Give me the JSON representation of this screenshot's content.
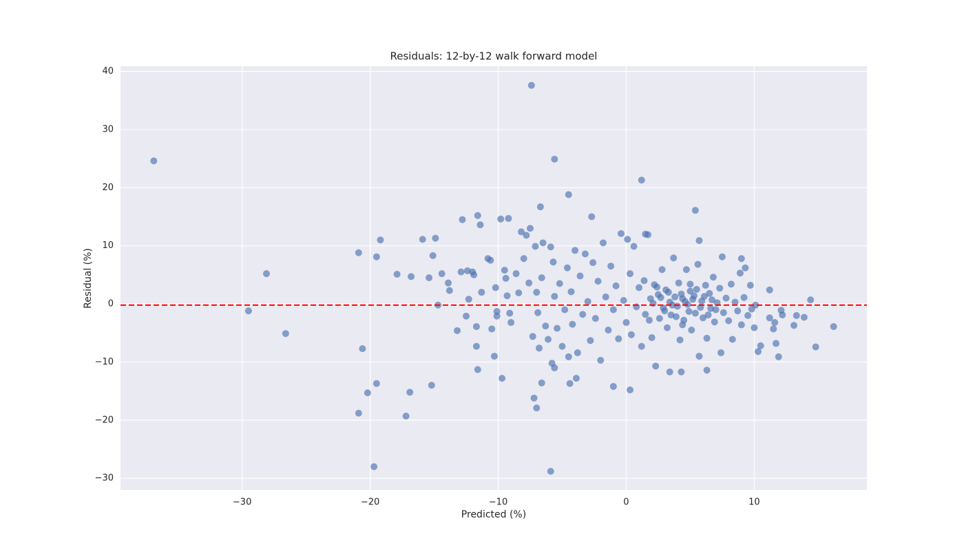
{
  "chart_data": {
    "type": "scatter",
    "title": "Residuals: 12-by-12 walk forward model",
    "x_label": "Predicted (%)",
    "y_label": "Residual (%)",
    "xlim": [
      -39.5,
      18.8
    ],
    "ylim": [
      -32.0,
      40.9
    ],
    "xticks": [
      {
        "value": -30,
        "label": "−30"
      },
      {
        "value": -20,
        "label": "−20"
      },
      {
        "value": -10,
        "label": "−10"
      },
      0,
      10
    ],
    "yticks": [
      {
        "value": -30,
        "label": "−30"
      },
      {
        "value": -20,
        "label": "−20"
      },
      {
        "value": -10,
        "label": "−10"
      },
      0,
      10,
      20,
      30,
      40
    ],
    "grid": true,
    "hline": -0.2,
    "hline_color": "#ff0000",
    "series": [
      {
        "color": "#4c72b0",
        "x": [
          -36.9,
          -29.5,
          -28.1,
          -26.6,
          -20.9,
          -20.6,
          -20.9,
          -20.2,
          -19.7,
          -19.5,
          -19.5,
          -19.2,
          -17.9,
          -17.2,
          -16.9,
          -16.8,
          -15.9,
          -15.4,
          -15.2,
          -15.1,
          -14.9,
          -14.7,
          -14.4,
          -13.9,
          -13.8,
          -13.2,
          -12.8,
          -12.9,
          -12.5,
          -12.4,
          -12.3,
          -12.0,
          -11.9,
          -11.7,
          -11.7,
          -11.6,
          -11.4,
          -11.6,
          -11.3,
          -10.8,
          -10.6,
          -10.5,
          -10.3,
          -10.2,
          -10.1,
          -10.1,
          -9.8,
          -9.7,
          -9.2,
          -7.4,
          -5.6,
          -4.5,
          1.2,
          5.4,
          -6.7,
          -2.7,
          5.7,
          1.5,
          -5.9,
          -7.0,
          -7.2,
          -6.6,
          -5.6,
          -5.8,
          -4.4,
          -3.9,
          -1.0,
          0.3,
          3.4,
          4.3,
          6.3,
          10.3,
          10.5,
          11.9,
          11.7,
          11.2,
          13.3,
          13.9,
          14.4,
          14.8,
          16.2,
          13.1,
          12.1,
          12.2,
          11.5,
          11.6,
          11.2,
          9.0,
          7.5,
          -9.5,
          -9.4,
          -9.3,
          -9.1,
          -9.0,
          -8.6,
          -8.4,
          -8.2,
          -8.0,
          -7.8,
          -7.6,
          -7.5,
          -7.3,
          -7.1,
          -7.0,
          -6.9,
          -6.8,
          -6.6,
          -6.5,
          -6.3,
          -6.1,
          -5.9,
          -5.7,
          -5.6,
          -5.4,
          -5.2,
          -5.0,
          -4.8,
          -4.6,
          -4.5,
          -4.3,
          -4.2,
          -4.0,
          -3.8,
          -3.6,
          -3.4,
          -3.2,
          -3.0,
          -2.8,
          -2.6,
          -2.4,
          -2.2,
          -2.0,
          -1.8,
          -1.6,
          -1.4,
          -1.2,
          -1.0,
          -0.8,
          -0.6,
          -0.4,
          -0.2,
          0.0,
          0.1,
          0.3,
          0.4,
          0.6,
          0.8,
          1.0,
          1.2,
          1.4,
          1.5,
          1.7,
          1.9,
          2.0,
          2.2,
          2.3,
          2.5,
          2.6,
          2.8,
          2.9,
          3.1,
          3.2,
          3.4,
          3.5,
          3.7,
          3.8,
          4.0,
          4.1,
          4.2,
          4.4,
          4.5,
          4.7,
          4.8,
          5.0,
          5.1,
          5.3,
          5.4,
          5.6,
          5.7,
          5.9,
          6.0,
          6.2,
          6.3,
          6.5,
          6.6,
          6.8,
          6.9,
          7.1,
          7.3,
          7.4,
          7.6,
          7.8,
          8.0,
          8.2,
          8.3,
          8.5,
          8.7,
          8.9,
          9.0,
          9.2,
          9.3,
          9.5,
          9.7,
          9.8,
          10.0,
          10.1,
          2.1,
          2.7,
          3.0,
          3.3,
          3.6,
          3.9,
          4.3,
          4.6,
          4.9,
          5.2,
          5.5,
          5.8,
          6.1,
          6.4,
          6.7,
          7.0,
          1.8,
          2.4,
          4.4,
          5.0
        ],
        "values": [
          24.6,
          -1.2,
          5.2,
          -5.1,
          8.8,
          -7.7,
          -18.8,
          -15.3,
          -28.0,
          -13.7,
          8.1,
          11.0,
          5.1,
          -19.3,
          -15.2,
          4.7,
          11.1,
          4.5,
          -14.0,
          8.3,
          11.3,
          -0.2,
          5.2,
          3.6,
          2.3,
          -4.6,
          14.5,
          5.5,
          -2.1,
          5.7,
          0.8,
          5.5,
          5.0,
          -3.9,
          -7.3,
          15.2,
          13.6,
          -11.3,
          2.0,
          7.8,
          7.5,
          -4.3,
          -9.0,
          2.8,
          -1.3,
          -2.1,
          14.6,
          -12.8,
          14.7,
          37.6,
          24.9,
          18.8,
          21.3,
          16.1,
          16.7,
          15.0,
          10.9,
          12.0,
          -28.8,
          -17.9,
          -16.2,
          -13.6,
          -11.0,
          -10.2,
          -13.7,
          -12.8,
          -14.2,
          -14.8,
          -11.7,
          -11.7,
          -11.4,
          -8.2,
          -7.2,
          -9.1,
          -6.8,
          2.4,
          -2.0,
          -2.3,
          0.7,
          -7.4,
          -3.9,
          -3.7,
          -1.1,
          -1.9,
          -4.3,
          -3.2,
          -2.4,
          7.8,
          8.1,
          5.8,
          4.4,
          1.4,
          -1.6,
          -3.2,
          5.2,
          1.9,
          12.4,
          7.8,
          11.8,
          3.6,
          13.0,
          -5.6,
          9.9,
          2.0,
          -1.5,
          -7.6,
          4.5,
          10.5,
          -3.8,
          -6.1,
          9.8,
          7.2,
          1.3,
          -4.2,
          3.5,
          -7.3,
          -1.0,
          6.2,
          -9.1,
          2.1,
          -3.5,
          9.2,
          -8.4,
          4.8,
          -1.8,
          8.6,
          0.4,
          -6.3,
          7.1,
          -2.5,
          3.9,
          -9.7,
          10.5,
          1.2,
          -4.5,
          6.5,
          -1.0,
          3.1,
          -6.0,
          12.1,
          0.6,
          -3.2,
          11.1,
          5.2,
          -5.3,
          9.9,
          -0.5,
          2.8,
          -7.3,
          4.0,
          -1.8,
          11.9,
          0.9,
          -5.8,
          3.3,
          -10.7,
          1.6,
          -2.5,
          5.9,
          -0.7,
          2.4,
          -4.1,
          0.3,
          -1.9,
          7.9,
          1.2,
          -0.4,
          3.6,
          -6.2,
          0.9,
          -2.8,
          5.9,
          -0.1,
          2.2,
          -4.5,
          1.4,
          -1.6,
          6.8,
          -9.0,
          0.5,
          -2.4,
          3.2,
          -5.9,
          1.8,
          -0.8,
          4.6,
          -3.1,
          0.2,
          2.7,
          -8.4,
          -1.5,
          1.0,
          -2.9,
          3.4,
          -6.1,
          0.3,
          -1.2,
          5.3,
          -3.6,
          1.1,
          6.2,
          -2.0,
          3.2,
          -0.9,
          -4.1,
          -0.2,
          0.1,
          1.1,
          -1.2,
          2.0,
          -0.2,
          -2.2,
          1.7,
          0.4,
          -1.3,
          0.8,
          2.5,
          -0.6,
          1.3,
          -1.9,
          0.7,
          -1.0,
          -2.8,
          2.9,
          -3.6,
          3.4
        ]
      }
    ]
  }
}
